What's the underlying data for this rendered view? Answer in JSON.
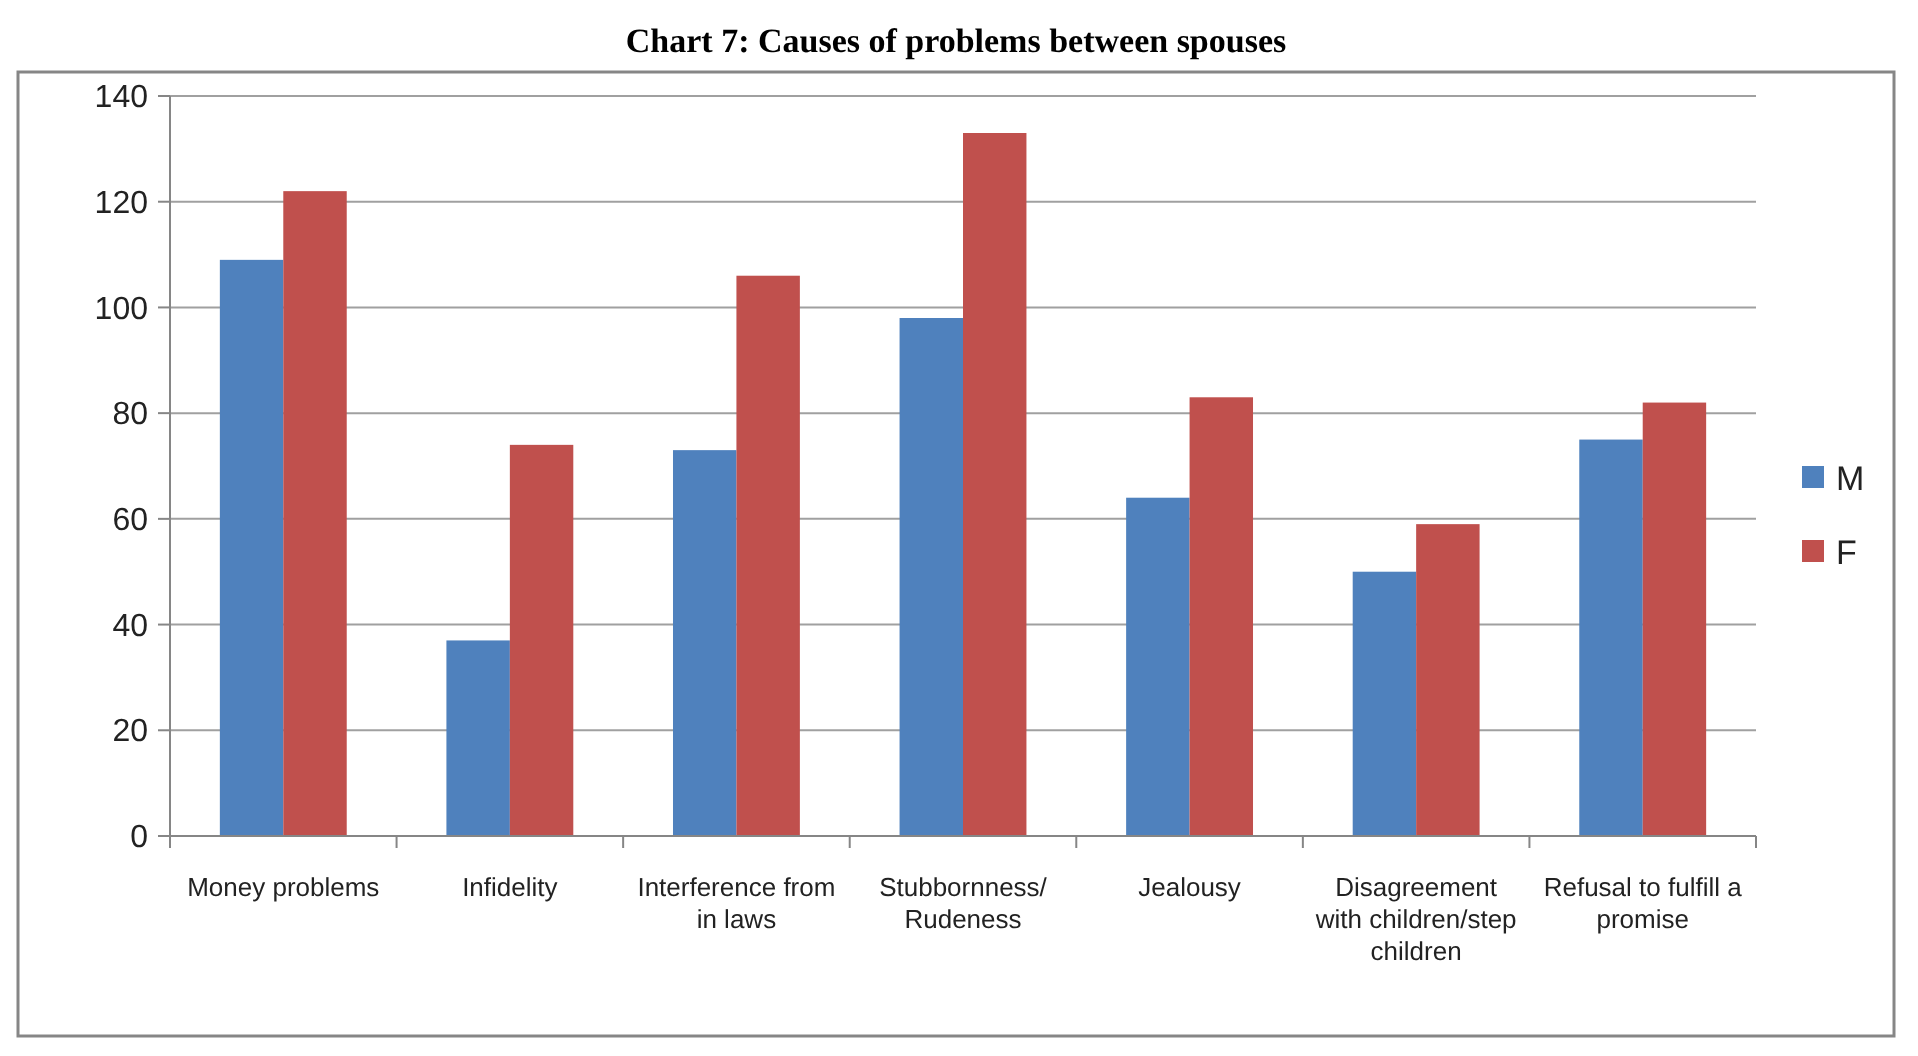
{
  "chart_data": {
    "type": "bar",
    "title": "Chart 7: Causes of problems between spouses",
    "categories": [
      "Money problems",
      "Infidelity",
      "Interference from in laws",
      "Stubbornness/ Rudeness",
      "Jealousy",
      "Disagreement with children/step children",
      "Refusal to fulfill a promise"
    ],
    "series": [
      {
        "name": "M",
        "color": "#4f81bd",
        "values": [
          109,
          37,
          73,
          98,
          64,
          50,
          75
        ]
      },
      {
        "name": "F",
        "color": "#c0504d",
        "values": [
          122,
          74,
          106,
          133,
          83,
          59,
          82
        ]
      }
    ],
    "ylim": [
      0,
      140
    ],
    "yticks": [
      0,
      20,
      40,
      60,
      80,
      100,
      120,
      140
    ],
    "grid": "y",
    "legend": "right"
  }
}
